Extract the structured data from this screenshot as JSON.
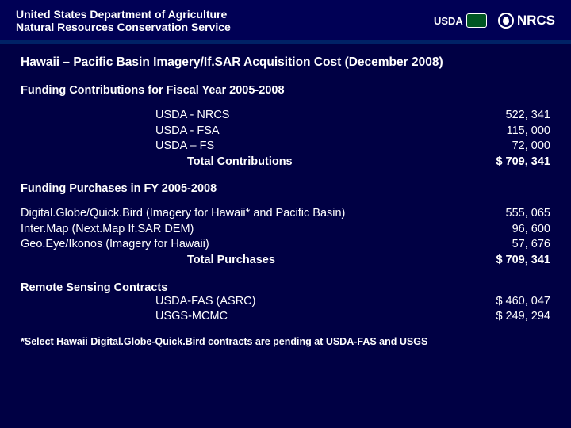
{
  "header": {
    "line1": "United States Department of Agriculture",
    "line2": "Natural Resources Conservation Service",
    "usda": "USDA",
    "nrcs": "NRCS"
  },
  "title": "Hawaii – Pacific Basin Imagery/If.SAR Acquisition Cost (December 2008)",
  "contrib_head": "Funding Contributions for Fiscal Year 2005-2008",
  "contributions": {
    "r1": {
      "label": "USDA - NRCS",
      "value": "522, 341"
    },
    "r2": {
      "label": "USDA - FSA",
      "value": "115, 000"
    },
    "r3": {
      "label": "USDA – FS",
      "value": "72, 000"
    },
    "total": {
      "label": "Total Contributions",
      "value": "$ 709, 341"
    }
  },
  "purch_head": "Funding Purchases in FY 2005-2008",
  "purchases": {
    "r1": {
      "label": "Digital.Globe/Quick.Bird (Imagery for Hawaii* and Pacific Basin)",
      "value": "555, 065"
    },
    "r2": {
      "label": "Inter.Map (Next.Map If.SAR DEM)",
      "value": "96, 600"
    },
    "r3": {
      "label": "Geo.Eye/Ikonos (Imagery for Hawaii)",
      "value": "57, 676"
    },
    "total": {
      "label": "Total Purchases",
      "value": "$ 709, 341"
    }
  },
  "remote_head": "Remote Sensing Contracts",
  "remote": {
    "r1": {
      "label": "USDA-FAS (ASRC)",
      "value": "$ 460, 047"
    },
    "r2": {
      "label": "USGS-MCMC",
      "value": "$ 249, 294"
    }
  },
  "footnote": "*Select Hawaii Digital.Globe-Quick.Bird contracts are pending at USDA-FAS and USGS"
}
